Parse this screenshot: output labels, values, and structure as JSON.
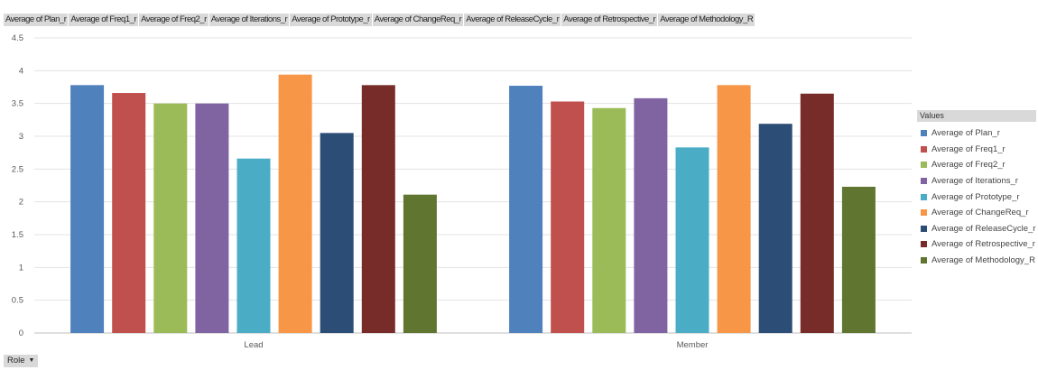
{
  "field_buttons": [
    "Average of Plan_r",
    "Average of Freq1_r",
    "Average of Freq2_r",
    "Average of Iterations_r",
    "Average of Prototype_r",
    "Average of ChangeReq_r",
    "Average of ReleaseCycle_r",
    "Average of Retrospective_r",
    "Average of Methodology_R"
  ],
  "legend": {
    "title": "Values",
    "items": [
      "Average of Plan_r",
      "Average of Freq1_r",
      "Average of Freq2_r",
      "Average of Iterations_r",
      "Average of Prototype_r",
      "Average of ChangeReq_r",
      "Average of ReleaseCycle_r",
      "Average of Retrospective_r",
      "Average of Methodology_R"
    ]
  },
  "filter": {
    "label": "Role",
    "icon": "dropdown-arrow-icon"
  },
  "chart_data": {
    "type": "bar",
    "categories": [
      "Lead",
      "Member"
    ],
    "ylim": [
      0,
      4.5
    ],
    "yticks": [
      0,
      0.5,
      1,
      1.5,
      2,
      2.5,
      3,
      3.5,
      4,
      4.5
    ],
    "grid": true,
    "legend_position": "right",
    "series": [
      {
        "name": "Average of Plan_r",
        "color": "#4f81bd",
        "values": [
          3.78,
          3.77
        ]
      },
      {
        "name": "Average of Freq1_r",
        "color": "#c0504d",
        "values": [
          3.66,
          3.53
        ]
      },
      {
        "name": "Average of Freq2_r",
        "color": "#9bbb59",
        "values": [
          3.5,
          3.43
        ]
      },
      {
        "name": "Average of Iterations_r",
        "color": "#8064a2",
        "values": [
          3.5,
          3.58
        ]
      },
      {
        "name": "Average of Prototype_r",
        "color": "#4bacc6",
        "values": [
          2.66,
          2.83
        ]
      },
      {
        "name": "Average of ChangeReq_r",
        "color": "#f79646",
        "values": [
          3.94,
          3.78
        ]
      },
      {
        "name": "Average of ReleaseCycle_r",
        "color": "#2c4d75",
        "values": [
          3.05,
          3.19
        ]
      },
      {
        "name": "Average of Retrospective_r",
        "color": "#772c2a",
        "values": [
          3.78,
          3.65
        ]
      },
      {
        "name": "Average of Methodology_R",
        "color": "#5f7530",
        "values": [
          2.11,
          2.23
        ]
      }
    ]
  }
}
